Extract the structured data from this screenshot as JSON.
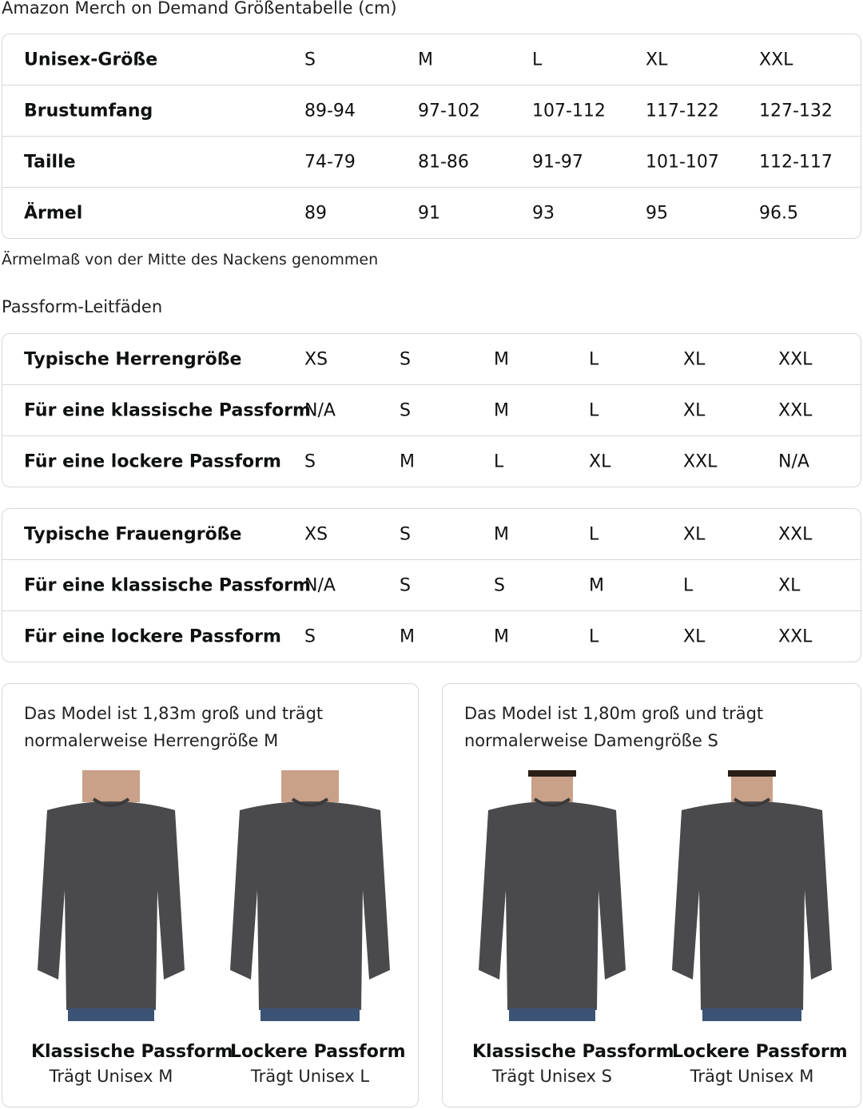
{
  "title": "Amazon Merch on Demand Größentabelle (cm)",
  "unisex_table": {
    "rows": [
      {
        "label": "Unisex-Größe",
        "values": [
          "S",
          "M",
          "L",
          "XL",
          "XXL"
        ]
      },
      {
        "label": "Brustumfang",
        "values": [
          "89-94",
          "97-102",
          "107-112",
          "117-122",
          "127-132"
        ]
      },
      {
        "label": "Taille",
        "values": [
          "74-79",
          "81-86",
          "91-97",
          "101-107",
          "112-117"
        ]
      },
      {
        "label": "Ärmel",
        "values": [
          "89",
          "91",
          "93",
          "95",
          "96.5"
        ]
      }
    ]
  },
  "note": "Ärmelmaß von der Mitte des Nackens genommen",
  "fit_title": "Passform-Leitfäden",
  "men_table": {
    "rows": [
      {
        "label": "Typische Herrengröße",
        "values": [
          "XS",
          "S",
          "M",
          "L",
          "XL",
          "XXL"
        ]
      },
      {
        "label": "Für eine klassische Passform",
        "values": [
          "N/A",
          "S",
          "M",
          "L",
          "XL",
          "XXL"
        ]
      },
      {
        "label": "Für eine lockere Passform",
        "values": [
          "S",
          "M",
          "L",
          "XL",
          "XXL",
          "N/A"
        ]
      }
    ]
  },
  "women_table": {
    "rows": [
      {
        "label": "Typische Frauengröße",
        "values": [
          "XS",
          "S",
          "M",
          "L",
          "XL",
          "XXL"
        ]
      },
      {
        "label": "Für eine klassische Passform",
        "values": [
          "N/A",
          "S",
          "S",
          "M",
          "L",
          "XL"
        ]
      },
      {
        "label": "Für eine lockere Passform",
        "values": [
          "S",
          "M",
          "M",
          "L",
          "XL",
          "XXL"
        ]
      }
    ]
  },
  "cards": [
    {
      "desc_line1": "Das Model ist 1,83m groß und trägt",
      "desc_line2": "normalerweise Herrengröße M",
      "figures": [
        {
          "title": "Klassische Passform",
          "subtitle": "Trägt Unisex M"
        },
        {
          "title": "Lockere Passform",
          "subtitle": "Trägt Unisex L"
        }
      ]
    },
    {
      "desc_line1": "Das Model ist 1,80m groß und trägt",
      "desc_line2": "normalerweise Damengröße S",
      "figures": [
        {
          "title": "Klassische Passform",
          "subtitle": "Trägt Unisex S"
        },
        {
          "title": "Lockere Passform",
          "subtitle": "Trägt Unisex M"
        }
      ]
    }
  ],
  "colors": {
    "border": "#d5d9d9",
    "sweater": "#4a4a4c",
    "jeans": "#3b5375",
    "skin": "#c9a088"
  }
}
